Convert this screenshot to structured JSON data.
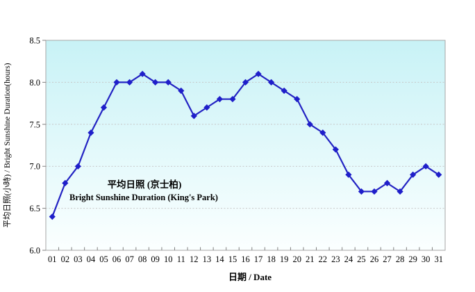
{
  "chart_data": {
    "type": "line",
    "categories": [
      "01",
      "02",
      "03",
      "04",
      "05",
      "06",
      "07",
      "08",
      "09",
      "10",
      "11",
      "12",
      "13",
      "14",
      "15",
      "16",
      "17",
      "18",
      "19",
      "20",
      "21",
      "22",
      "23",
      "24",
      "25",
      "26",
      "27",
      "28",
      "29",
      "30",
      "31"
    ],
    "values": [
      6.4,
      6.8,
      7.0,
      7.4,
      7.7,
      8.0,
      8.0,
      8.1,
      8.0,
      8.0,
      7.9,
      7.6,
      7.7,
      7.8,
      7.8,
      8.0,
      8.1,
      8.0,
      7.9,
      7.8,
      7.5,
      7.4,
      7.2,
      6.9,
      6.7,
      6.7,
      6.8,
      6.7,
      6.9,
      7.0,
      6.9
    ],
    "series_name_zh": "平均日照 (京士柏)",
    "series_name_en": "Bright Sunshine Duration (King's Park)",
    "xlabel": "日期 / Date",
    "ylabel": "平均日照(小時) / Bright Sunshine Duration(hours)",
    "ylim": [
      6.0,
      8.5
    ],
    "y_ticks": [
      8.5,
      8.0,
      7.5,
      7.0,
      6.5,
      6.0
    ],
    "grid": "horizontal-dashed",
    "legend_position": "inside-plot-left-center",
    "marker": "diamond",
    "colors": {
      "line": "#2323c3",
      "marker": "#1f1fca",
      "legend_text": "#8b2424",
      "plot_bg_top": "#c8f2f6",
      "plot_bg_bottom": "#fbffff",
      "gridline": "#c6c6c6",
      "axis_border": "#a6a6a6"
    }
  }
}
